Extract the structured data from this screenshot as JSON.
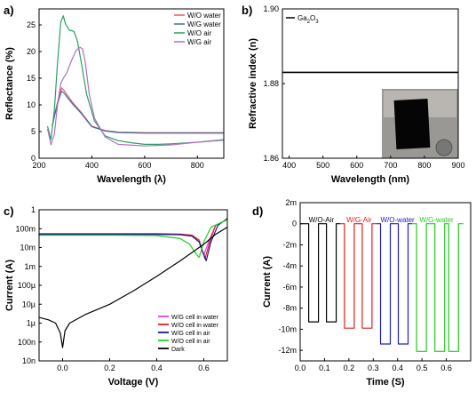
{
  "chart_data": [
    {
      "panel_label": "a)",
      "type": "line",
      "xlabel": "Wavelength (λ)",
      "ylabel": "Reflectance (%)",
      "xlim": [
        200,
        900
      ],
      "ylim": [
        0,
        28
      ],
      "x_ticks": [
        "200",
        "400",
        "600",
        "800"
      ],
      "y_ticks": [
        "0",
        "5",
        "10",
        "15",
        "20",
        "25"
      ],
      "legend_position": "top-right",
      "series": [
        {
          "name": "W/O water",
          "color": "#e06060",
          "x": [
            250,
            260,
            275,
            285,
            295,
            310,
            330,
            360,
            400,
            450,
            500,
            600,
            700,
            800,
            900
          ],
          "y": [
            6.2,
            8.5,
            11.5,
            13.2,
            12.7,
            11.6,
            10.3,
            8.6,
            6.0,
            5.2,
            4.9,
            4.8,
            4.8,
            4.8,
            4.8
          ]
        },
        {
          "name": "W/G water",
          "color": "#3a6ea8",
          "x": [
            250,
            260,
            275,
            285,
            295,
            310,
            330,
            360,
            400,
            450,
            500,
            600,
            700,
            800,
            900
          ],
          "y": [
            6.0,
            8.2,
            11.0,
            12.6,
            12.2,
            11.2,
            10.0,
            8.4,
            5.9,
            5.1,
            4.8,
            4.7,
            4.7,
            4.7,
            4.7
          ]
        },
        {
          "name": "W/O  air",
          "color": "#2e9e5e",
          "x": [
            232,
            245,
            258,
            270,
            282,
            292,
            300,
            315,
            332,
            345,
            360,
            380,
            410,
            450,
            500,
            550,
            600,
            650,
            700,
            800,
            900
          ],
          "y": [
            6.0,
            3.5,
            9.0,
            18.0,
            25.5,
            26.7,
            25.2,
            24.0,
            23.8,
            22.0,
            18.0,
            12.0,
            7.0,
            4.2,
            3.3,
            2.9,
            2.6,
            2.6,
            2.7,
            3.0,
            3.4
          ]
        },
        {
          "name": "W/G  air",
          "color": "#b070c8",
          "x": [
            232,
            245,
            258,
            270,
            282,
            292,
            305,
            320,
            340,
            355,
            365,
            375,
            390,
            410,
            450,
            500,
            600,
            700,
            800,
            900
          ],
          "y": [
            5.5,
            2.5,
            4.5,
            10.0,
            14.0,
            15.0,
            16.0,
            18.0,
            20.2,
            20.8,
            20.5,
            18.0,
            12.0,
            7.5,
            4.0,
            2.6,
            2.3,
            2.5,
            3.0,
            3.5
          ]
        }
      ]
    },
    {
      "panel_label": "b)",
      "type": "line",
      "xlabel": "Wavelength (nm)",
      "ylabel": "Refractive index (n)",
      "xlim": [
        380,
        900
      ],
      "ylim": [
        1.86,
        1.9
      ],
      "x_ticks": [
        "400",
        "500",
        "600",
        "700",
        "800",
        "900"
      ],
      "y_ticks": [
        "1.86",
        "1.88",
        "1.90"
      ],
      "legend_html": "Ga<tspan baseline-shift=\"sub\" font-size=\"6\">2</tspan>O<tspan baseline-shift=\"sub\" font-size=\"6\">3</tspan>",
      "series": [
        {
          "name": "Ga2O3",
          "color": "#000000",
          "x": [
            380,
            900
          ],
          "y": [
            1.883,
            1.883
          ]
        }
      ],
      "inset": "photo of Ga2O3 sample"
    },
    {
      "panel_label": "c)",
      "type": "line",
      "xlabel": "Voltage (V)",
      "ylabel": "Current (A)",
      "xlim": [
        -0.1,
        0.7
      ],
      "ylog": true,
      "y_exp_range": [
        -8,
        0
      ],
      "x_ticks": [
        "0.0",
        "0.2",
        "0.4",
        "0.6"
      ],
      "y_ticks": [
        "1",
        "100m",
        "10m",
        "1m",
        "100µ",
        "10µ",
        "1µ",
        "100n",
        "10n"
      ],
      "legend_position": "bottom-right",
      "series": [
        {
          "name": "W/G cell in water",
          "color": "#e040e0",
          "x": [
            -0.1,
            0.0,
            0.2,
            0.4,
            0.5,
            0.55,
            0.58,
            0.6,
            0.62,
            0.65,
            0.7
          ],
          "y": [
            0.05,
            0.05,
            0.05,
            0.05,
            0.048,
            0.04,
            0.02,
            0.004,
            0.02,
            0.15,
            0.3
          ]
        },
        {
          "name": "W/O cell in water",
          "color": "#e02020",
          "x": [
            -0.1,
            0.0,
            0.2,
            0.4,
            0.5,
            0.55,
            0.58,
            0.605,
            0.625,
            0.65,
            0.7
          ],
          "y": [
            0.055,
            0.055,
            0.055,
            0.055,
            0.052,
            0.045,
            0.025,
            0.0025,
            0.02,
            0.15,
            0.3
          ]
        },
        {
          "name": "W/G cell in air",
          "color": "#1a1a90",
          "x": [
            -0.1,
            0.0,
            0.2,
            0.4,
            0.5,
            0.55,
            0.58,
            0.61,
            0.63,
            0.66,
            0.7
          ],
          "y": [
            0.05,
            0.05,
            0.05,
            0.05,
            0.048,
            0.04,
            0.02,
            0.002,
            0.02,
            0.15,
            0.35
          ]
        },
        {
          "name": "W/O cell in air",
          "color": "#20d020",
          "x": [
            -0.1,
            0.0,
            0.2,
            0.4,
            0.5,
            0.54,
            0.565,
            0.58,
            0.6,
            0.63,
            0.7
          ],
          "y": [
            0.045,
            0.045,
            0.045,
            0.043,
            0.03,
            0.015,
            0.005,
            0.003,
            0.02,
            0.12,
            0.3
          ]
        },
        {
          "name": "Dark",
          "color": "#000000",
          "x": [
            -0.1,
            -0.06,
            -0.03,
            -0.01,
            0.0,
            0.01,
            0.03,
            0.1,
            0.2,
            0.3,
            0.4,
            0.5,
            0.6,
            0.65,
            0.7
          ],
          "y": [
            2e-06,
            1.5e-06,
            1e-06,
            3e-07,
            5e-08,
            4e-07,
            1e-06,
            3e-06,
            1e-05,
            5e-05,
            0.0003,
            0.002,
            0.015,
            0.05,
            0.12
          ]
        }
      ]
    },
    {
      "panel_label": "d)",
      "type": "line",
      "xlabel": "Time (S)",
      "ylabel": "Current (A)",
      "xlim": [
        0,
        0.7
      ],
      "ylim": [
        -13,
        2
      ],
      "x_ticks": [
        "0.0",
        "0.1",
        "0.2",
        "0.3",
        "0.4",
        "0.5",
        "0.6"
      ],
      "y_ticks": [
        "2m",
        "0",
        "-2m",
        "-4m",
        "-6m",
        "-8m",
        "-10m",
        "-12m"
      ],
      "y_tick_values": [
        2,
        0,
        -2,
        -4,
        -6,
        -8,
        -10,
        -12
      ],
      "series": [
        {
          "name": "W/O-Air",
          "color": "#000000",
          "label_x": 0.035,
          "x": [
            0.0,
            0.035,
            0.035,
            0.075,
            0.075,
            0.108,
            0.108,
            0.148,
            0.148,
            0.165
          ],
          "y": [
            0,
            0,
            -9.3,
            -9.3,
            0,
            0,
            -9.3,
            -9.3,
            0,
            0
          ]
        },
        {
          "name": "W/G-Air",
          "color": "#e02020",
          "label_x": 0.19,
          "x": [
            0.165,
            0.182,
            0.182,
            0.222,
            0.222,
            0.255,
            0.255,
            0.295,
            0.295,
            0.312
          ],
          "y": [
            0,
            0,
            -9.9,
            -9.9,
            0,
            0,
            -9.9,
            -9.9,
            0,
            0
          ]
        },
        {
          "name": "W/O-water",
          "color": "#2020c0",
          "label_x": 0.33,
          "x": [
            0.312,
            0.33,
            0.33,
            0.37,
            0.37,
            0.403,
            0.403,
            0.443,
            0.443,
            0.46
          ],
          "y": [
            0,
            0,
            -11.4,
            -11.4,
            0,
            0,
            -11.4,
            -11.4,
            0,
            0
          ]
        },
        {
          "name": "W/G-water",
          "color": "#20cc20",
          "label_x": 0.49,
          "x": [
            0.46,
            0.478,
            0.478,
            0.518,
            0.518,
            0.553,
            0.553,
            0.593,
            0.593,
            0.61,
            0.61,
            0.65,
            0.65,
            0.67
          ],
          "y": [
            0,
            0,
            -12.1,
            -12.1,
            0,
            0,
            -12.1,
            -12.1,
            0,
            0,
            -12.1,
            -12.1,
            0,
            0
          ]
        }
      ]
    }
  ]
}
